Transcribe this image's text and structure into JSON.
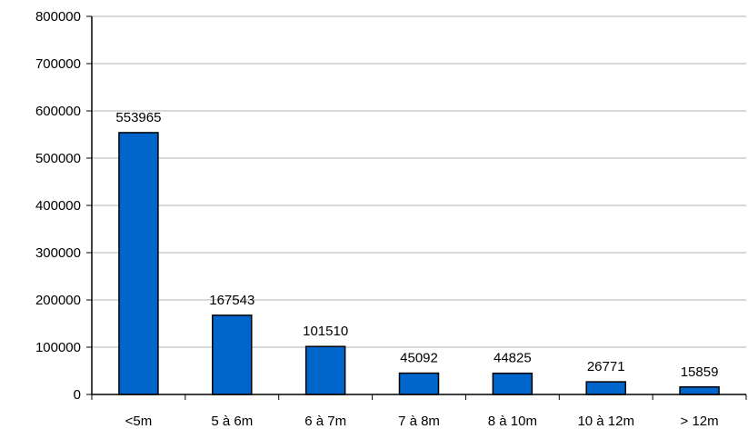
{
  "chart_data": {
    "type": "bar",
    "title": "",
    "xlabel": "",
    "ylabel": "",
    "categories": [
      "<5m",
      "5 à 6m",
      "6 à 7m",
      "7 à 8m",
      "8 à 10m",
      "10 à 12m",
      "> 12m"
    ],
    "values": [
      553965,
      167543,
      101510,
      45092,
      44825,
      26771,
      15859
    ],
    "data_labels": [
      "553965",
      "167543",
      "101510",
      "45092",
      "44825",
      "26771",
      "15859"
    ],
    "ylim": [
      0,
      800000
    ],
    "yticks": [
      0,
      100000,
      200000,
      300000,
      400000,
      500000,
      600000,
      700000,
      800000
    ],
    "ytick_labels": [
      "0",
      "100000",
      "200000",
      "300000",
      "400000",
      "500000",
      "600000",
      "700000",
      "800000"
    ],
    "grid": true,
    "legend": false,
    "bar_color": "#0066cc",
    "bar_edge_color": "#000000",
    "grid_color": "#b3b3b3"
  }
}
